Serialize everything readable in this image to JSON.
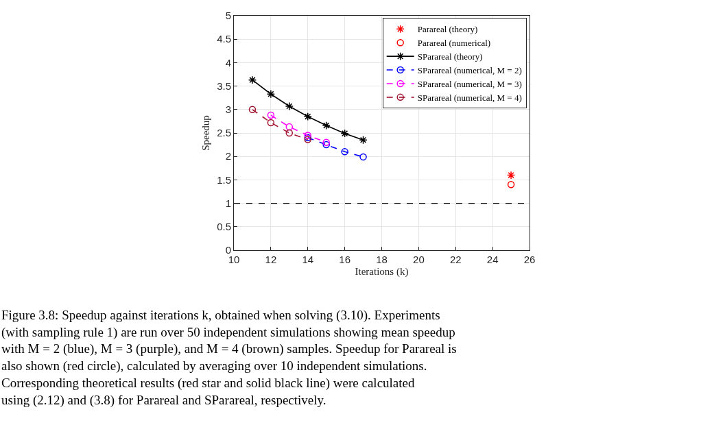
{
  "chart_data": {
    "type": "line",
    "xlabel": "Iterations (k)",
    "ylabel": "Speedup",
    "xlim": [
      10,
      26
    ],
    "xticks": [
      10,
      12,
      14,
      16,
      18,
      20,
      22,
      24,
      26
    ],
    "ylim": [
      0,
      5
    ],
    "yticks": [
      0,
      0.5,
      1,
      1.5,
      2,
      2.5,
      3,
      3.5,
      4,
      4.5,
      5
    ],
    "grid": true,
    "legend": "top right",
    "series": [
      {
        "name": "Parareal (theory)",
        "type": "scatter",
        "marker": "cross",
        "color": "#ff0000",
        "x": [
          25
        ],
        "values": [
          1.6
        ]
      },
      {
        "name": "Parareal (numerical)",
        "type": "scatter",
        "marker": "circle",
        "color": "#ff0000",
        "x": [
          25
        ],
        "values": [
          1.4
        ]
      },
      {
        "name": "SParareal (theory)",
        "marker": "cross",
        "line_style": "solid",
        "color": "#000000",
        "x": [
          11,
          12,
          13,
          14,
          15,
          16,
          17
        ],
        "values": [
          3.63,
          3.33,
          3.07,
          2.85,
          2.66,
          2.49,
          2.35
        ]
      },
      {
        "name": "SParareal (numerical, M = 2)",
        "marker": "circle",
        "line_style": "dashed",
        "color": "#0000ff",
        "x": [
          14,
          15,
          16,
          17
        ],
        "values": [
          2.4,
          2.25,
          2.1,
          1.99
        ]
      },
      {
        "name": "SParareal (numerical, M = 3)",
        "marker": "circle",
        "line_style": "dashed",
        "color": "#ff00ff",
        "x": [
          12,
          13,
          14,
          15
        ],
        "values": [
          2.88,
          2.63,
          2.45,
          2.3
        ]
      },
      {
        "name": "SParareal (numerical, M = 4)",
        "marker": "circle",
        "line_style": "dashed",
        "color": "#a2142f",
        "x": [
          11,
          12,
          13,
          14
        ],
        "values": [
          3.0,
          2.72,
          2.5,
          2.36
        ]
      }
    ],
    "ref_lines": [
      {
        "axis": "y",
        "value": 1,
        "color": "#000000",
        "line_style": "dashed"
      }
    ],
    "annotations": [
      "Figure 3.8: Speedup against iterations k, obtained when solving (3.10). Experiments (with sampling rule 1) are run over 50 independent simulations showing mean speedup with M = 2 (blue), M = 3 (purple), and M = 4 (brown) samples. Speedup for Parareal is also shown (red circle), calculated by averaging over 10 independent simulations. Corresponding theoretical results (red star and solid black line) were calculated using (2.12) and (3.8) for Parareal and SParareal, respectively."
    ]
  }
}
